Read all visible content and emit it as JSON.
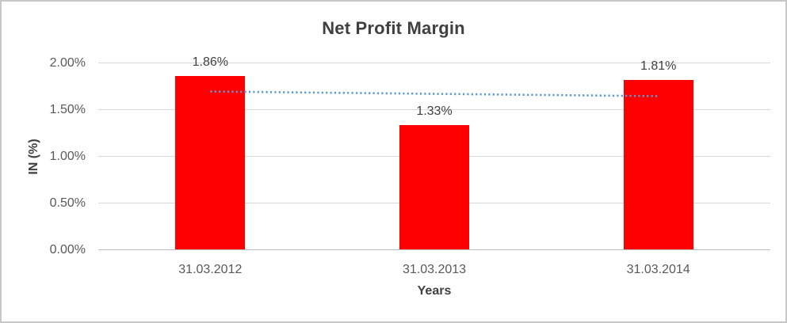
{
  "chart_data": {
    "type": "bar",
    "title": "Net Profit Margin",
    "xlabel": "Years",
    "ylabel": "IN (%)",
    "categories": [
      "31.03.2012",
      "31.03.2013",
      "31.03.2014"
    ],
    "values": [
      1.86,
      1.33,
      1.81
    ],
    "value_labels": [
      "1.86%",
      "1.33%",
      "1.81%"
    ],
    "ylim": [
      0,
      2.0
    ],
    "yticks": [
      {
        "value": 0.0,
        "label": "0.00%"
      },
      {
        "value": 0.5,
        "label": "0.50%"
      },
      {
        "value": 1.0,
        "label": "1.00%"
      },
      {
        "value": 1.5,
        "label": "1.50%"
      },
      {
        "value": 2.0,
        "label": "2.00%"
      }
    ],
    "grid": "horizontal",
    "legend_position": "none",
    "colors": {
      "bar": "#ff0000",
      "trendline": "#5b9bd5",
      "gridline": "#d9d9d9",
      "axis_line": "#bfbfbf",
      "tick_text": "#595959",
      "title_text": "#404040"
    },
    "trendline": {
      "type": "linear",
      "style": "dotted",
      "color": "#5b9bd5",
      "start_value": 1.69,
      "end_value": 1.64
    }
  }
}
